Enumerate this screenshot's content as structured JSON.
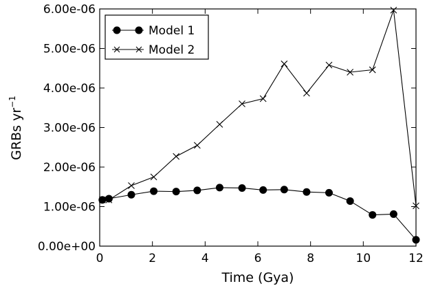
{
  "chart_data": {
    "type": "line",
    "xlabel": "Time (Gya)",
    "ylabel": "GRBs yr",
    "ylabel_superscript": "−1",
    "xlim": [
      0,
      12
    ],
    "ylim": [
      0,
      6e-06
    ],
    "x_ticks": [
      0,
      2,
      4,
      6,
      8,
      10,
      12
    ],
    "x_tick_labels": [
      "0",
      "2",
      "4",
      "6",
      "8",
      "10",
      "12"
    ],
    "y_ticks": [
      0,
      1e-06,
      2e-06,
      3e-06,
      4e-06,
      5e-06,
      6e-06
    ],
    "y_tick_labels": [
      "0.00e+00",
      "1.00e-06",
      "2.00e-06",
      "3.00e-06",
      "4.00e-06",
      "5.00e-06",
      "6.00e-06"
    ],
    "grid": false,
    "legend_position": "top-left",
    "series": [
      {
        "name": "Model 1",
        "marker": "circle",
        "color": "#000000",
        "x": [
          0.1,
          0.35,
          1.2,
          2.05,
          2.9,
          3.7,
          4.55,
          5.4,
          6.2,
          7.0,
          7.85,
          8.7,
          9.5,
          10.35,
          11.15,
          12.0
        ],
        "y": [
          1.17e-06,
          1.2e-06,
          1.3e-06,
          1.39e-06,
          1.38e-06,
          1.41e-06,
          1.48e-06,
          1.47e-06,
          1.42e-06,
          1.43e-06,
          1.37e-06,
          1.35e-06,
          1.14e-06,
          7.9e-07,
          8.1e-07,
          1.6e-07
        ]
      },
      {
        "name": "Model 2",
        "marker": "x",
        "color": "#000000",
        "x": [
          0.1,
          0.35,
          1.2,
          2.05,
          2.9,
          3.7,
          4.55,
          5.4,
          6.2,
          7.0,
          7.85,
          8.7,
          9.5,
          10.35,
          11.15,
          12.0
        ],
        "y": [
          1.17e-06,
          1.17e-06,
          1.53e-06,
          1.75e-06,
          2.27e-06,
          2.55e-06,
          3.08e-06,
          3.6e-06,
          3.73e-06,
          4.61e-06,
          3.87e-06,
          4.58e-06,
          4.4e-06,
          4.46e-06,
          5.97e-06,
          1.02e-06
        ]
      }
    ]
  }
}
